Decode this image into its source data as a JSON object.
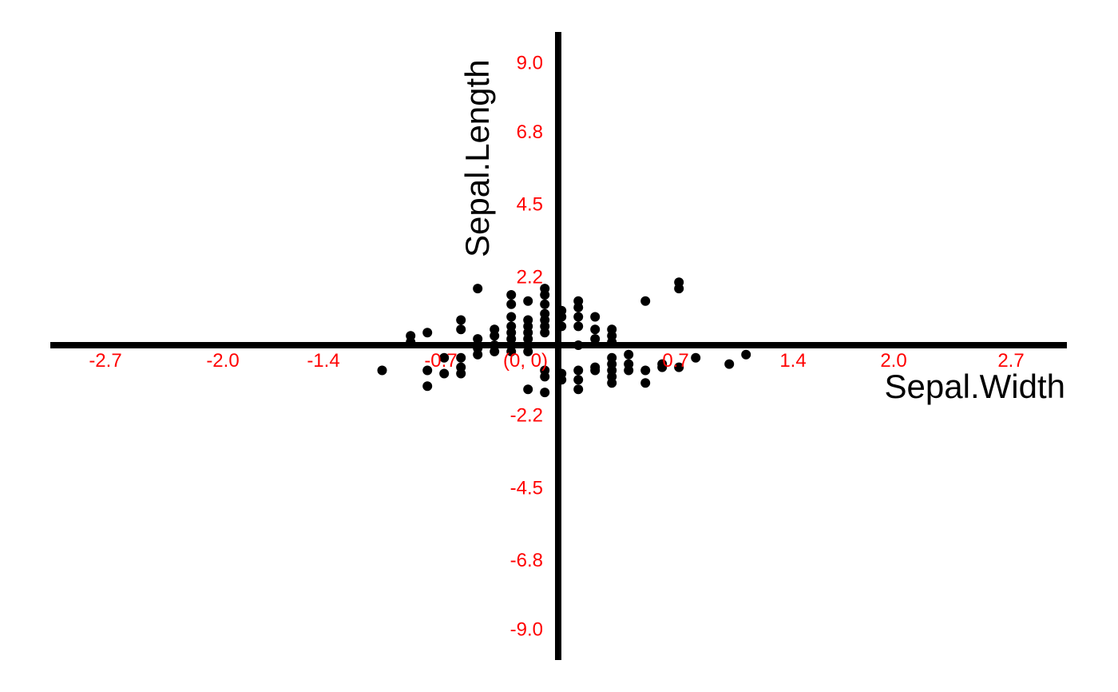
{
  "chart_data": {
    "type": "scatter",
    "title": "",
    "xlabel": "Sepal.Width",
    "ylabel": "Sepal.Length",
    "origin_label": "(0, 0)",
    "xlim": [
      -3.0,
      3.0
    ],
    "ylim": [
      -9.2,
      9.6
    ],
    "grid": false,
    "legend": "none",
    "colors": {
      "axis": "#000000",
      "tick_labels": "#ff0000",
      "points": "#000000"
    },
    "x_ticks": [
      {
        "value": -2.7,
        "label": "-2.7"
      },
      {
        "value": -2.0,
        "label": "-2.0"
      },
      {
        "value": -1.4,
        "label": "-1.4"
      },
      {
        "value": -0.7,
        "label": "-0.7"
      },
      {
        "value": 0.7,
        "label": "0.7"
      },
      {
        "value": 1.4,
        "label": "1.4"
      },
      {
        "value": 2.0,
        "label": "2.0"
      },
      {
        "value": 2.7,
        "label": "2.7"
      }
    ],
    "y_ticks": [
      {
        "value": 9.0,
        "label": "9.0"
      },
      {
        "value": 6.8,
        "label": "6.8"
      },
      {
        "value": 4.5,
        "label": "4.5"
      },
      {
        "value": 2.2,
        "label": "2.2"
      },
      {
        "value": -2.2,
        "label": "-2.2"
      },
      {
        "value": -4.5,
        "label": "-4.5"
      },
      {
        "value": -6.8,
        "label": "-6.8"
      },
      {
        "value": -9.0,
        "label": "-9.0"
      }
    ],
    "series": [
      {
        "points": [
          [
            -1.05,
            -0.8
          ],
          [
            -0.78,
            -0.8
          ],
          [
            -0.78,
            -1.3
          ],
          [
            -0.68,
            -0.9
          ],
          [
            -0.58,
            -0.9
          ],
          [
            -0.58,
            -0.7
          ],
          [
            -0.58,
            -0.4
          ],
          [
            -0.68,
            -0.4
          ],
          [
            -0.88,
            0.3
          ],
          [
            -0.88,
            0.1
          ],
          [
            -0.78,
            0.4
          ],
          [
            -0.58,
            0.8
          ],
          [
            -0.58,
            0.5
          ],
          [
            -0.48,
            0.2
          ],
          [
            -0.48,
            -0.1
          ],
          [
            -0.48,
            -0.3
          ],
          [
            -0.48,
            1.8
          ],
          [
            -0.38,
            0.5
          ],
          [
            -0.38,
            0.3
          ],
          [
            -0.38,
            0.0
          ],
          [
            -0.38,
            -0.2
          ],
          [
            -0.28,
            1.6
          ],
          [
            -0.28,
            1.3
          ],
          [
            -0.28,
            0.9
          ],
          [
            -0.28,
            0.6
          ],
          [
            -0.28,
            0.4
          ],
          [
            -0.28,
            0.2
          ],
          [
            -0.28,
            0.0
          ],
          [
            -0.28,
            -0.2
          ],
          [
            -0.18,
            1.4
          ],
          [
            -0.18,
            0.8
          ],
          [
            -0.18,
            0.6
          ],
          [
            -0.18,
            0.4
          ],
          [
            -0.18,
            0.2
          ],
          [
            -0.18,
            0.0
          ],
          [
            -0.18,
            -0.2
          ],
          [
            -0.18,
            -1.4
          ],
          [
            -0.08,
            1.8
          ],
          [
            -0.08,
            1.6
          ],
          [
            -0.08,
            1.3
          ],
          [
            -0.08,
            1.0
          ],
          [
            -0.08,
            0.8
          ],
          [
            -0.08,
            0.6
          ],
          [
            -0.08,
            0.4
          ],
          [
            -0.08,
            -0.8
          ],
          [
            -0.08,
            -1.0
          ],
          [
            -0.08,
            -1.5
          ],
          [
            0.02,
            1.1
          ],
          [
            0.02,
            0.9
          ],
          [
            0.02,
            0.6
          ],
          [
            0.02,
            -0.9
          ],
          [
            0.02,
            -1.1
          ],
          [
            0.12,
            1.4
          ],
          [
            0.12,
            1.2
          ],
          [
            0.12,
            0.9
          ],
          [
            0.12,
            0.6
          ],
          [
            0.12,
            0.0
          ],
          [
            0.12,
            -0.8
          ],
          [
            0.12,
            -1.1
          ],
          [
            0.12,
            -1.4
          ],
          [
            0.22,
            0.9
          ],
          [
            0.22,
            0.5
          ],
          [
            0.22,
            0.2
          ],
          [
            0.22,
            -0.7
          ],
          [
            0.22,
            -0.8
          ],
          [
            0.32,
            0.5
          ],
          [
            0.32,
            0.3
          ],
          [
            0.32,
            0.1
          ],
          [
            0.32,
            -0.4
          ],
          [
            0.32,
            -0.6
          ],
          [
            0.32,
            -0.8
          ],
          [
            0.32,
            -1.0
          ],
          [
            0.32,
            -1.2
          ],
          [
            0.42,
            -0.3
          ],
          [
            0.42,
            -0.6
          ],
          [
            0.42,
            -0.8
          ],
          [
            0.52,
            1.4
          ],
          [
            0.52,
            -0.8
          ],
          [
            0.52,
            -1.2
          ],
          [
            0.62,
            -0.6
          ],
          [
            0.62,
            -0.7
          ],
          [
            0.72,
            2.0
          ],
          [
            0.72,
            1.8
          ],
          [
            0.72,
            -0.7
          ],
          [
            0.82,
            -0.4
          ],
          [
            1.02,
            -0.6
          ],
          [
            1.12,
            -0.3
          ]
        ]
      }
    ]
  }
}
